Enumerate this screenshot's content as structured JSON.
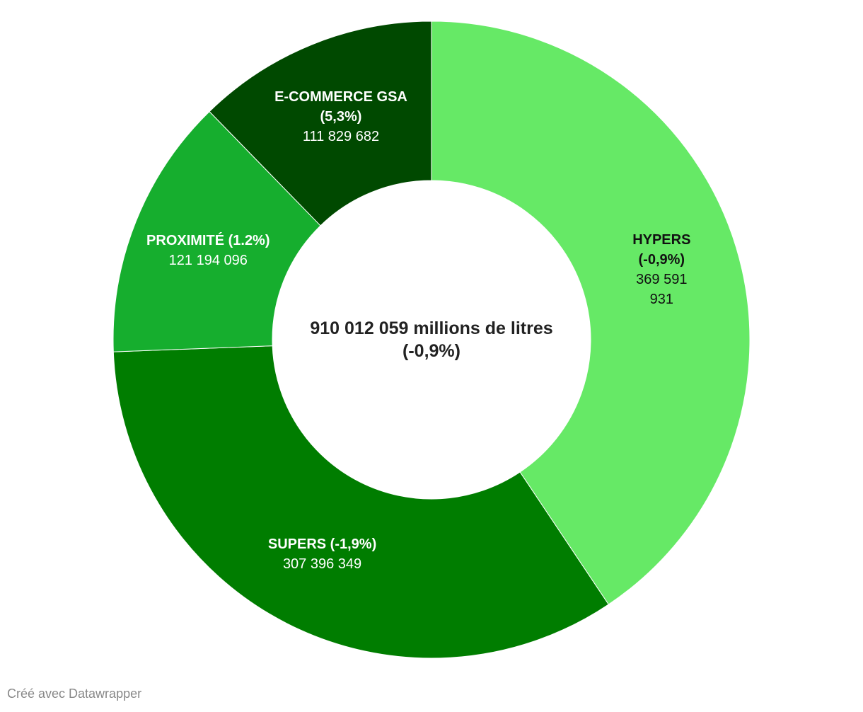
{
  "chart_data": {
    "type": "donut",
    "categories": [
      "HYPERS (-0,9%)",
      "SUPERS (-1,9%)",
      "PROXIMITÉ (1.2%)",
      "E-COMMERCE GSA (5,3%)"
    ],
    "values": [
      369591931,
      307396349,
      121194096,
      111829682
    ],
    "value_labels": [
      "369 591 931",
      "307 396 349",
      "121 194 096",
      "111 829 682"
    ],
    "colors": [
      "#66e966",
      "#007d00",
      "#16ae2e",
      "#004900"
    ],
    "center_title": "910 012 059 millions de litres",
    "center_subtitle": "(-0,9%)",
    "footer": "Créé avec Datawrapper"
  }
}
